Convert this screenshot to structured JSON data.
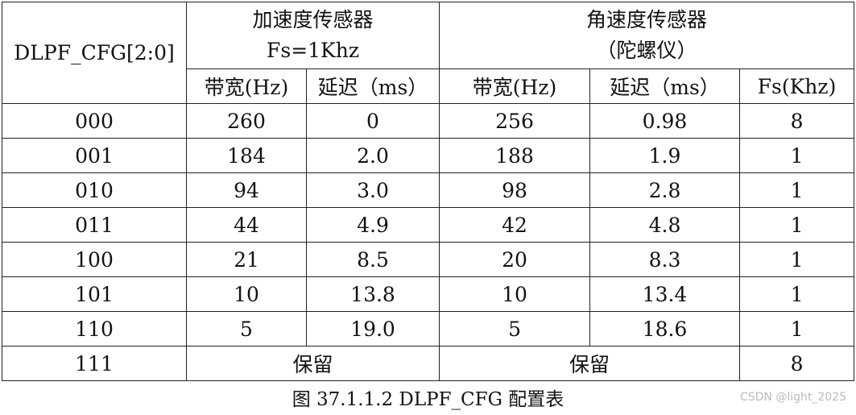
{
  "table": {
    "header": {
      "cfg": "DLPF_CFG[2:0]",
      "groups": [
        {
          "lines": [
            "加速度传感器",
            "Fs=1Khz"
          ]
        },
        {
          "lines": [
            "角速度传感器",
            "（陀螺仪）"
          ]
        }
      ],
      "subheaders": [
        "带宽(Hz)",
        "延迟（ms）",
        "带宽(Hz)",
        "延迟（ms）",
        "Fs(Khz)"
      ]
    },
    "rows": [
      [
        "000",
        "260",
        "0",
        "256",
        "0.98",
        "8"
      ],
      [
        "001",
        "184",
        "2.0",
        "188",
        "1.9",
        "1"
      ],
      [
        "010",
        "94",
        "3.0",
        "98",
        "2.8",
        "1"
      ],
      [
        "011",
        "44",
        "4.9",
        "42",
        "4.8",
        "1"
      ],
      [
        "100",
        "21",
        "8.5",
        "20",
        "8.3",
        "1"
      ],
      [
        "101",
        "10",
        "13.8",
        "10",
        "13.4",
        "1"
      ],
      [
        "110",
        "5",
        "19.0",
        "5",
        "18.6",
        "1"
      ]
    ],
    "last_row": [
      "111",
      "保留",
      "保留",
      "8"
    ]
  },
  "caption": "图 37.1.1.2 DLPF_CFG 配置表",
  "watermark": "CSDN @light_2025"
}
